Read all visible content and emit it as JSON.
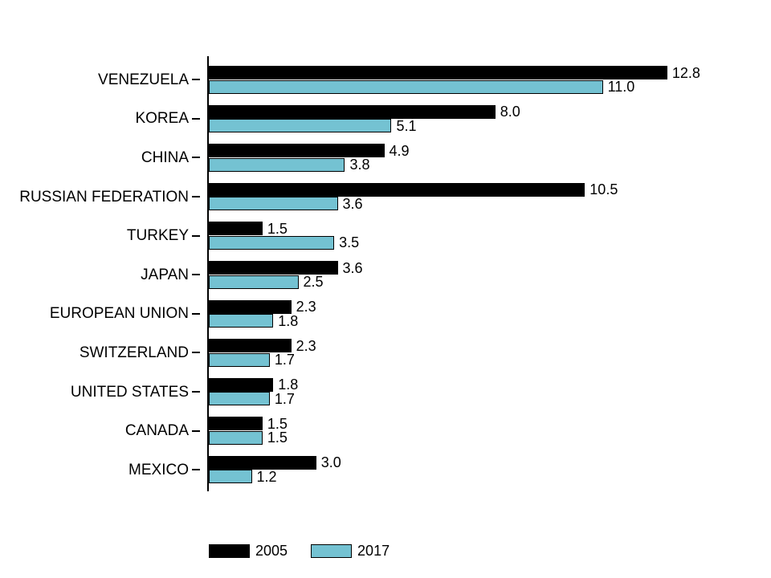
{
  "chart_data": {
    "type": "bar",
    "orientation": "horizontal",
    "title": "",
    "xlabel": "",
    "ylabel": "",
    "xlim": [
      0,
      13
    ],
    "grid": false,
    "legend_position": "bottom",
    "categories": [
      "VENEZUELA",
      "KOREA",
      "CHINA",
      "RUSSIAN FEDERATION",
      "TURKEY",
      "JAPAN",
      "EUROPEAN UNION",
      "SWITZERLAND",
      "UNITED STATES",
      "CANADA",
      "MEXICO"
    ],
    "series": [
      {
        "name": "2005",
        "color": "#000000",
        "values": [
          12.8,
          8.0,
          4.9,
          10.5,
          1.5,
          3.6,
          2.3,
          2.3,
          1.8,
          1.5,
          3.0
        ],
        "labels": [
          "12.8",
          "8.0",
          "4.9",
          "10.5",
          "1.5",
          "3.6",
          "2.3",
          "2.3",
          "1.8",
          "1.5",
          "3.0"
        ]
      },
      {
        "name": "2017",
        "color": "#74c2d2",
        "values": [
          11.0,
          5.1,
          3.8,
          3.6,
          3.5,
          2.5,
          1.8,
          1.7,
          1.7,
          1.5,
          1.2
        ],
        "labels": [
          "11.0",
          "5.1",
          "3.8",
          "3.6",
          "3.5",
          "2.5",
          "1.8",
          "1.7",
          "1.7",
          "1.5",
          "1.2"
        ]
      }
    ]
  },
  "legend": {
    "items": [
      {
        "label": "2005",
        "color": "#000000"
      },
      {
        "label": "2017",
        "color": "#74c2d2"
      }
    ]
  }
}
